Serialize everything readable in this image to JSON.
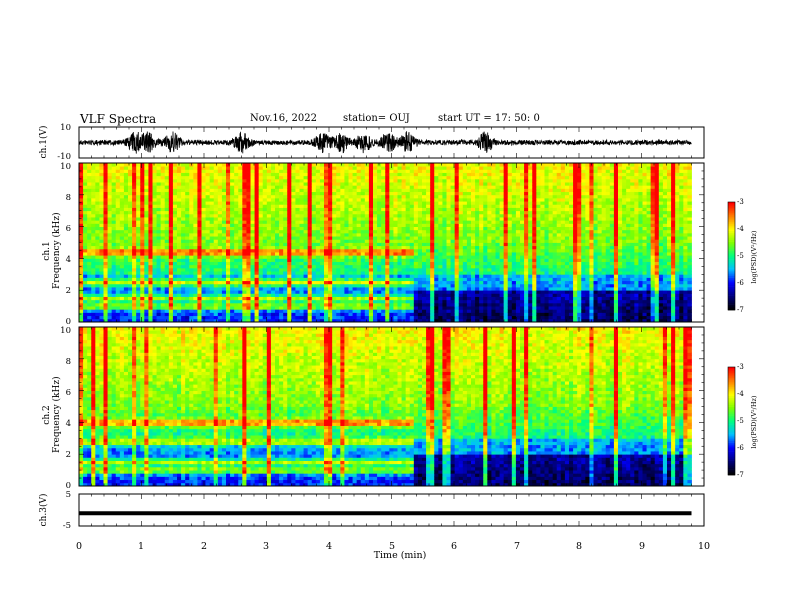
{
  "header": {
    "title": "VLF Spectra",
    "date": "Nov.16, 2022",
    "station": "station= OUJ",
    "start": "start  UT  =   17: 50: 0"
  },
  "chart_data": [
    {
      "type": "line",
      "name": "ch1-waveform",
      "ylabel": "ch.1(V)",
      "ylim": [
        -10,
        10
      ],
      "y_ticks": [
        "10",
        "-10"
      ],
      "x_unit": "min",
      "xlim": [
        0,
        10
      ],
      "data_end_x": 9.8,
      "burst_centers_min": [
        0.9,
        1.1,
        1.5,
        2.6,
        3.9,
        4.2,
        4.55,
        4.95,
        5.25,
        6.5
      ]
    },
    {
      "type": "heatmap",
      "name": "ch1-spectrogram",
      "ylabel": "ch.1\nFrequency (kHz)",
      "ylim": [
        0,
        10
      ],
      "y_ticks": [
        "0",
        "2",
        "4",
        "6",
        "8",
        "10"
      ],
      "xlim": [
        0,
        10
      ],
      "data_end_x": 9.8,
      "emission_bands_kHz": [
        1.0,
        1.5,
        2.5,
        4.4
      ],
      "band_end_min": 5.35,
      "colorbar": {
        "label": "log(PSD)(V²/Hz)",
        "range": [
          -7,
          -3
        ],
        "ticks": [
          "-3",
          "-4",
          "-5",
          "-6",
          "-7"
        ]
      }
    },
    {
      "type": "heatmap",
      "name": "ch2-spectrogram",
      "ylabel": "ch.2\nFrequency (kHz)",
      "ylim": [
        0,
        10
      ],
      "y_ticks": [
        "0",
        "2",
        "4",
        "6",
        "8",
        "10"
      ],
      "xlim": [
        0,
        10
      ],
      "data_end_x": 9.8,
      "emission_bands_kHz": [
        1.0,
        1.5,
        2.8,
        4.0
      ],
      "band_end_min": 5.35,
      "colorbar": {
        "label": "log(PSD)(V²/Hz)",
        "range": [
          -7,
          -3
        ],
        "ticks": [
          "-3",
          "-4",
          "-5",
          "-6",
          "-7"
        ]
      }
    },
    {
      "type": "line",
      "name": "ch3-waveform",
      "ylabel": "ch.3(V)",
      "ylim": [
        -5,
        5
      ],
      "y_ticks": [
        "5",
        "-5"
      ],
      "xlim": [
        0,
        10
      ],
      "data_end_x": 9.8,
      "level_V": -1.0
    }
  ],
  "x_axis": {
    "label": "Time  (min)",
    "ticks": [
      "0",
      "1",
      "2",
      "3",
      "4",
      "5",
      "6",
      "7",
      "8",
      "9",
      "10"
    ]
  },
  "colors": {
    "colormap": [
      "#000000",
      "#00007f",
      "#0000ff",
      "#00bfff",
      "#00ff7f",
      "#7fff00",
      "#ffff00",
      "#ff7f00",
      "#ff0000",
      "#ffffff"
    ]
  }
}
